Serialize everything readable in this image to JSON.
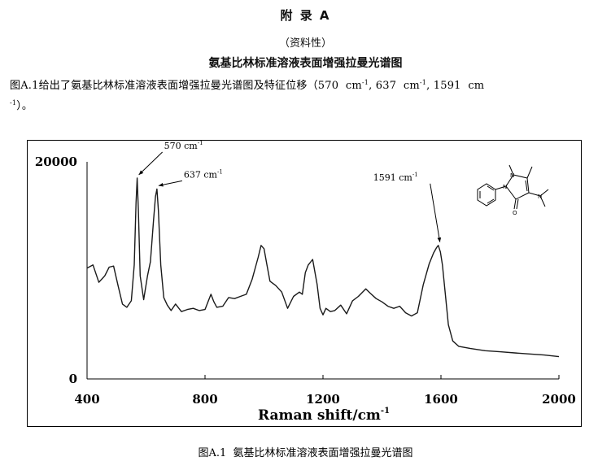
{
  "header": {
    "appendix_title": "附 录 A",
    "appendix_note": "（资料性）",
    "section_title": "氨基比林标准溶液表面增强拉曼光谱图"
  },
  "intro": {
    "before": "图A.1给出了氨基比林标准溶液表面增强拉曼光谱图及特征位移（",
    "shift_1": "570",
    "shift_2": "637",
    "shift_3": "1591",
    "unit": "cm",
    "unit_exp": "-1",
    "end": "）。"
  },
  "caption": {
    "label": "图A.1",
    "text": "氨基比林标准溶液表面增强拉曼光谱图"
  },
  "chart_data": {
    "type": "line",
    "xlabel": "Raman shift/cm",
    "xlabel_exp": "-1",
    "ylabel": "",
    "xlim": [
      400,
      2000
    ],
    "ylim": [
      0,
      20000
    ],
    "x_ticks": [
      400,
      800,
      1200,
      1600,
      2000
    ],
    "y_ticks": [
      0,
      20000
    ],
    "grid": false,
    "line_color": "#1a1a1a",
    "x": [
      400,
      420,
      440,
      460,
      475,
      490,
      505,
      520,
      535,
      550,
      560,
      566,
      570,
      574,
      580,
      592,
      605,
      615,
      625,
      632,
      637,
      642,
      650,
      660,
      672,
      685,
      700,
      720,
      740,
      760,
      780,
      800,
      820,
      830,
      840,
      860,
      880,
      900,
      920,
      940,
      960,
      980,
      990,
      1000,
      1010,
      1020,
      1040,
      1060,
      1080,
      1100,
      1120,
      1130,
      1140,
      1150,
      1165,
      1180,
      1190,
      1200,
      1210,
      1225,
      1240,
      1260,
      1280,
      1300,
      1320,
      1345,
      1360,
      1380,
      1400,
      1420,
      1440,
      1460,
      1480,
      1500,
      1520,
      1540,
      1560,
      1575,
      1585,
      1591,
      1598,
      1605,
      1615,
      1625,
      1640,
      1660,
      1700,
      1750,
      1800,
      1850,
      1900,
      1950,
      2000
    ],
    "values": [
      10200,
      10500,
      8900,
      9500,
      10300,
      10400,
      8600,
      6900,
      6600,
      7200,
      10500,
      16200,
      18500,
      15500,
      9500,
      7300,
      9500,
      10800,
      14500,
      16800,
      17500,
      15500,
      10500,
      7500,
      6800,
      6300,
      6900,
      6200,
      6400,
      6500,
      6300,
      6400,
      7800,
      7100,
      6600,
      6700,
      7500,
      7400,
      7600,
      7800,
      9200,
      11200,
      12300,
      12000,
      10500,
      9000,
      8600,
      8000,
      6500,
      7600,
      8000,
      7800,
      9800,
      10500,
      11000,
      8700,
      6500,
      5900,
      6500,
      6200,
      6300,
      6800,
      6000,
      7200,
      7600,
      8300,
      7900,
      7400,
      7100,
      6700,
      6500,
      6700,
      6100,
      5800,
      6100,
      8700,
      10600,
      11600,
      12100,
      12300,
      11700,
      10500,
      7800,
      5000,
      3500,
      3000,
      2800,
      2600,
      2500,
      2400,
      2300,
      2200,
      2050
    ],
    "annotations": [
      {
        "label": "570 cm",
        "exp": "-1",
        "x": 570,
        "y": 18500
      },
      {
        "label": "637 cm",
        "exp": "-1",
        "x": 637,
        "y": 17500
      },
      {
        "label": "1591 cm",
        "exp": "-1",
        "x": 1591,
        "y": 12300
      }
    ],
    "molecule_labels": {
      "n1": "N",
      "n2": "N",
      "n3": "N",
      "o": "O"
    }
  }
}
